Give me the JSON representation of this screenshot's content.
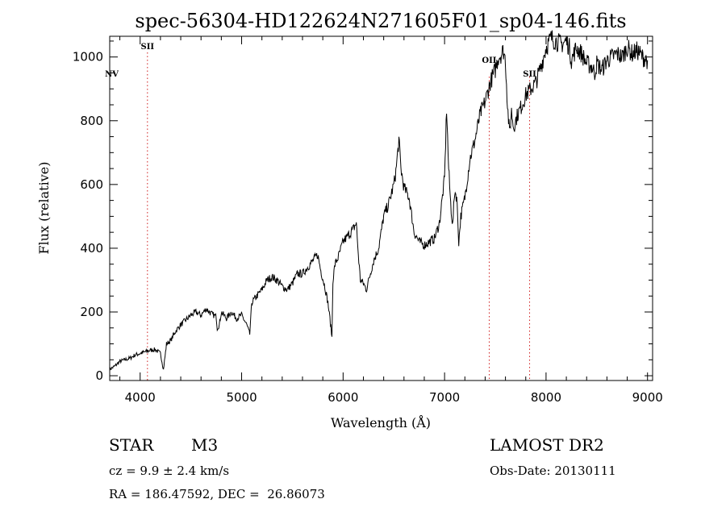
{
  "chart_data": {
    "type": "line",
    "title": "spec-56304-HD122624N271605F01_sp04-146.fits",
    "xlabel": "Wavelength (Å)",
    "ylabel": "Flux (relative)",
    "xlim": [
      3700,
      9050
    ],
    "ylim": [
      -15,
      1065
    ],
    "xticks": [
      4000,
      5000,
      6000,
      7000,
      8000,
      9000
    ],
    "yticks": [
      0,
      200,
      400,
      600,
      800,
      1000
    ],
    "grid": false,
    "spectrum": {
      "x": [
        3700,
        3750,
        3800,
        3850,
        3900,
        3950,
        4000,
        4050,
        4100,
        4150,
        4200,
        4230,
        4260,
        4300,
        4350,
        4400,
        4450,
        4500,
        4550,
        4600,
        4650,
        4700,
        4750,
        4760,
        4780,
        4800,
        4850,
        4900,
        4950,
        5000,
        5050,
        5080,
        5100,
        5150,
        5200,
        5250,
        5300,
        5350,
        5400,
        5450,
        5500,
        5550,
        5600,
        5650,
        5700,
        5750,
        5780,
        5820,
        5850,
        5870,
        5890,
        5900,
        5920,
        5950,
        6000,
        6050,
        6100,
        6130,
        6150,
        6170,
        6200,
        6230,
        6260,
        6300,
        6350,
        6400,
        6450,
        6500,
        6520,
        6550,
        6570,
        6600,
        6650,
        6700,
        6750,
        6800,
        6850,
        6900,
        6950,
        7000,
        7020,
        7040,
        7060,
        7080,
        7100,
        7120,
        7140,
        7160,
        7200,
        7250,
        7300,
        7350,
        7400,
        7450,
        7500,
        7530,
        7560,
        7580,
        7600,
        7620,
        7640,
        7660,
        7680,
        7700,
        7720,
        7750,
        7800,
        7850,
        7900,
        7950,
        8000,
        8050,
        8100,
        8150,
        8200,
        8230,
        8250,
        8300,
        8350,
        8400,
        8450,
        8480,
        8500,
        8550,
        8600,
        8650,
        8700,
        8750,
        8800,
        8850,
        8900,
        8950,
        9000
      ],
      "y": [
        20,
        30,
        45,
        50,
        55,
        65,
        70,
        75,
        80,
        82,
        70,
        20,
        100,
        110,
        140,
        160,
        175,
        190,
        200,
        190,
        210,
        195,
        185,
        150,
        160,
        200,
        180,
        200,
        180,
        190,
        160,
        130,
        230,
        250,
        270,
        300,
        310,
        300,
        280,
        270,
        290,
        320,
        320,
        340,
        360,
        380,
        330,
        280,
        230,
        180,
        120,
        300,
        350,
        370,
        420,
        440,
        460,
        480,
        380,
        300,
        290,
        270,
        310,
        360,
        400,
        500,
        540,
        600,
        640,
        740,
        650,
        590,
        560,
        450,
        420,
        410,
        420,
        430,
        480,
        620,
        840,
        650,
        540,
        470,
        580,
        560,
        420,
        500,
        560,
        680,
        740,
        820,
        860,
        920,
        960,
        1000,
        1010,
        1020,
        990,
        850,
        760,
        830,
        780,
        800,
        820,
        840,
        880,
        900,
        920,
        970,
        1030,
        1060,
        1050,
        1040,
        1050,
        1030,
        990,
        1030,
        1010,
        980,
        970,
        950,
        980,
        960,
        990,
        1000,
        1010,
        1000,
        1030,
        1010,
        1020,
        1000,
        990
      ]
    },
    "lines": [
      {
        "name": "NV",
        "x": 3720
      },
      {
        "name": "SII",
        "x": 4072
      },
      {
        "name": "OII",
        "x": 7440
      },
      {
        "name": "SII",
        "x": 7838
      }
    ]
  },
  "footer": {
    "object_label": "STAR",
    "subclass": "M3",
    "survey": "LAMOST DR2",
    "cz_text": "cz = 9.9 ± 2.4 km/s",
    "obs_date_text": "Obs-Date: 20130111",
    "coords_text": "RA = 186.47592, DEC =  26.86073"
  }
}
